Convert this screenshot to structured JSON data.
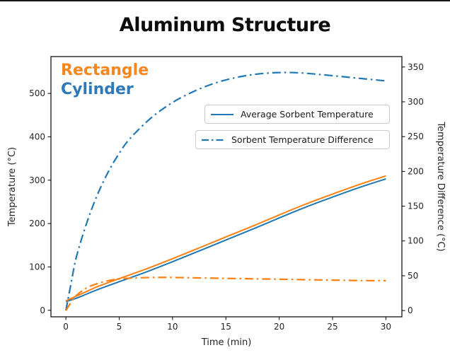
{
  "title": "Aluminum Structure",
  "annotations": {
    "rectangle": {
      "label": "Rectangle",
      "color": "#F6861F"
    },
    "cylinder": {
      "label": "Cylinder",
      "color": "#2E79BC"
    }
  },
  "legend": [
    {
      "label": "Average Sorbent Temperature",
      "line_style": "solid",
      "color": "#1f77b4"
    },
    {
      "label": "Sorbent Temperature Difference",
      "line_style": "dashdot",
      "color": "#1f77b4"
    }
  ],
  "colors": {
    "blue_line": "#1f77b4",
    "orange_line": "#ff7f0e",
    "spine": "#000000",
    "tick_text": "#262626"
  },
  "chart_data": {
    "type": "line",
    "title": "Aluminum Structure",
    "xlabel": "Time (min)",
    "ylabel_left": "Temperature (°C)",
    "ylabel_right": "Temperature Difference (°C)",
    "xlim": [
      -1.4,
      31.5
    ],
    "ylim_left": [
      -15,
      585
    ],
    "ylim_right": [
      -9,
      365
    ],
    "xticks": [
      0,
      5,
      10,
      15,
      20,
      25,
      30
    ],
    "yticks_left": [
      0,
      100,
      200,
      300,
      400,
      500
    ],
    "yticks_right": [
      0,
      50,
      100,
      150,
      200,
      250,
      300,
      350
    ],
    "grid": false,
    "legend_position": "upper right, two stacked boxes inside axes",
    "series": [
      {
        "name": "Cylinder - Sorbent Temperature Difference",
        "axis": "right",
        "style": "dashdot",
        "color": "#1f77b4",
        "width": 2.2,
        "x": [
          0,
          0.5,
          1,
          2,
          3,
          4,
          5,
          6,
          8,
          10,
          12,
          14,
          16,
          18,
          20,
          22,
          24,
          26,
          28,
          30
        ],
        "y": [
          0,
          40,
          78,
          128,
          168,
          200,
          226,
          247,
          277,
          299,
          315,
          327,
          335,
          340,
          342,
          341.5,
          339,
          336,
          333,
          330
        ]
      },
      {
        "name": "Cylinder - Average Sorbent Temperature",
        "axis": "left",
        "style": "solid",
        "color": "#1f77b4",
        "width": 2,
        "x": [
          0,
          1,
          2,
          3,
          5,
          7.5,
          10,
          12.5,
          15,
          17.5,
          20,
          22.5,
          25,
          27.5,
          30
        ],
        "y": [
          20,
          28,
          38,
          48,
          66,
          88,
          112,
          137,
          162,
          187,
          213,
          238,
          261,
          283,
          303
        ]
      },
      {
        "name": "Rectangle - Average Sorbent Temperature",
        "axis": "left",
        "style": "solid",
        "color": "#ff7f0e",
        "width": 2,
        "x": [
          0,
          1,
          2,
          3,
          5,
          7.5,
          10,
          12.5,
          15,
          17.5,
          20,
          22.5,
          25,
          27.5,
          30
        ],
        "y": [
          22,
          33,
          44,
          55,
          73,
          95,
          119,
          144,
          169,
          194,
          220,
          245,
          268,
          290,
          310
        ]
      },
      {
        "name": "Rectangle - Sorbent Temperature Difference",
        "axis": "right",
        "style": "dashdot",
        "color": "#ff7f0e",
        "width": 2.2,
        "x": [
          0,
          0.5,
          1,
          2,
          3,
          4,
          5,
          6,
          8,
          10,
          12,
          14,
          16,
          18,
          20,
          22,
          24,
          26,
          28,
          30
        ],
        "y": [
          0,
          12,
          22,
          33,
          39,
          43,
          45.5,
          46.5,
          47.5,
          47.5,
          47,
          46.5,
          46,
          45.5,
          45,
          44.5,
          44,
          43.5,
          43,
          43
        ]
      }
    ]
  }
}
